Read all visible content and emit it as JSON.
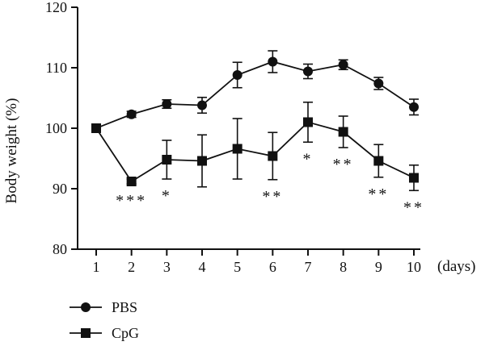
{
  "chart_data": {
    "type": "line",
    "xlabel": "(days)",
    "ylabel": "Body weight (%)",
    "x": [
      1,
      2,
      3,
      4,
      5,
      6,
      7,
      8,
      9,
      10
    ],
    "xticks": [
      "1",
      "2",
      "3",
      "4",
      "5",
      "6",
      "7",
      "8",
      "9",
      "10"
    ],
    "yticks": [
      "80",
      "90",
      "100",
      "110",
      "120"
    ],
    "ylim": [
      80,
      120
    ],
    "grid": false,
    "legend_position": "bottom-left",
    "series": [
      {
        "name": "PBS",
        "marker": "circle",
        "values": [
          100,
          102.3,
          104.0,
          103.8,
          108.8,
          111.0,
          109.4,
          110.5,
          107.4,
          103.5
        ],
        "errors": [
          0.3,
          0.5,
          0.7,
          1.3,
          2.1,
          1.8,
          1.2,
          0.8,
          1.0,
          1.3
        ]
      },
      {
        "name": "CpG",
        "marker": "square",
        "values": [
          100,
          91.2,
          94.8,
          94.6,
          96.6,
          95.4,
          101.0,
          99.4,
          94.6,
          91.8
        ],
        "errors": [
          0.3,
          0.4,
          3.2,
          4.3,
          5.0,
          3.9,
          3.3,
          2.6,
          2.7,
          2.1
        ]
      }
    ],
    "significance": [
      {
        "day": 2,
        "label": "***"
      },
      {
        "day": 3,
        "label": "*"
      },
      {
        "day": 6,
        "label": "**"
      },
      {
        "day": 7,
        "label": "*"
      },
      {
        "day": 8,
        "label": "**"
      },
      {
        "day": 9,
        "label": "**"
      },
      {
        "day": 10,
        "label": "**"
      }
    ],
    "colors": {
      "line": "#111111",
      "background": "#ffffff"
    }
  }
}
